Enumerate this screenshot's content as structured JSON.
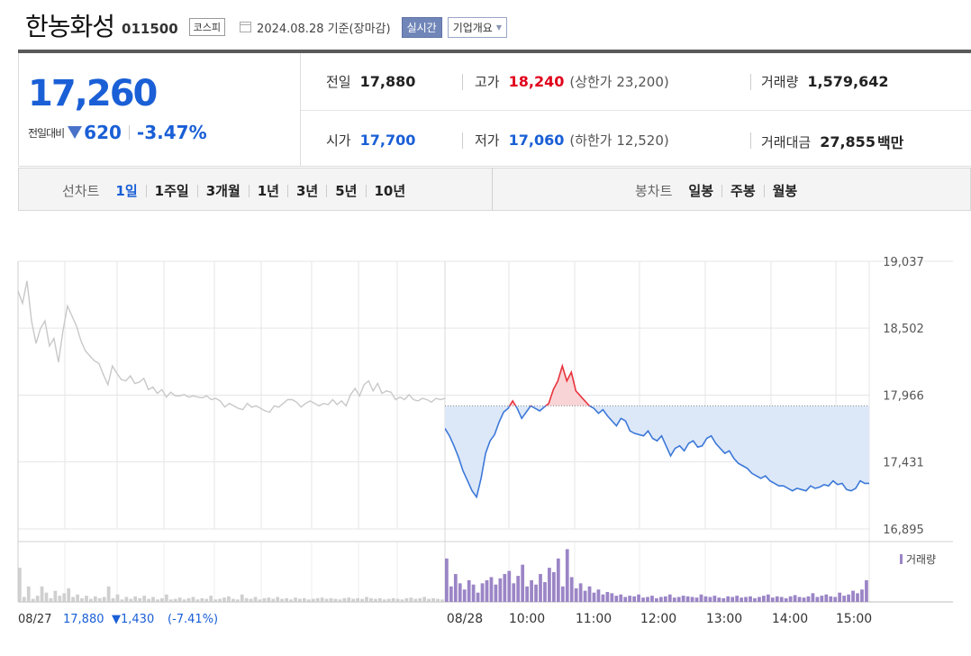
{
  "header": {
    "company_name": "한농화성",
    "code": "011500",
    "market": "코스피",
    "date_text": "2024.08.28  기준(장마감)",
    "realtime_btn": "실시간",
    "company_info_btn": "기업개요"
  },
  "price": {
    "current": "17,260",
    "change_label": "전일대비",
    "change_abs": "620",
    "change_pct": "-3.47%"
  },
  "stats": {
    "prev_close_label": "전일",
    "prev_close": "17,880",
    "high_label": "고가",
    "high": "18,240",
    "upper_limit_text": "(상한가 23,200)",
    "volume_label": "거래량",
    "volume": "1,579,642",
    "open_label": "시가",
    "open": "17,700",
    "low_label": "저가",
    "low": "17,060",
    "lower_limit_text": "(하한가 12,520)",
    "amount_label": "거래대금",
    "amount": "27,855",
    "amount_unit": "백만"
  },
  "tabs": {
    "line_label": "선차트",
    "line_periods": [
      "1일",
      "1주일",
      "3개월",
      "1년",
      "3년",
      "5년",
      "10년"
    ],
    "active_line": "1일",
    "candle_label": "봉차트",
    "candle_periods": [
      "일봉",
      "주봉",
      "월봉"
    ]
  },
  "chart_data": {
    "type": "line",
    "ylim": [
      16895,
      19037
    ],
    "yticks": [
      "19,037",
      "18,502",
      "17,966",
      "17,431",
      "16,895"
    ],
    "ytick_values": [
      19037,
      18502,
      17966,
      17431,
      16895
    ],
    "xticks": [
      "08/28",
      "10:00",
      "11:00",
      "12:00",
      "13:00",
      "14:00",
      "15:00"
    ],
    "volume_legend": "거래량",
    "baseline": 17880,
    "prev_day_footer": {
      "date": "08/27",
      "close": "17,880",
      "change": "▼1,430",
      "pct": "(-7.41%)"
    },
    "colors": {
      "prev": "#c8c8c8",
      "up": "#e8323c",
      "down": "#3c78d8",
      "fill_down": "#dce8f8",
      "fill_up": "#f9d4d6",
      "volume_today": "#9b85c6",
      "volume_prev": "#cfcfcf"
    },
    "series": [
      {
        "name": "08/27",
        "values": [
          18800,
          18700,
          18880,
          18560,
          18380,
          18500,
          18560,
          18360,
          18420,
          18230,
          18480,
          18680,
          18600,
          18520,
          18400,
          18320,
          18280,
          18240,
          18220,
          18130,
          18050,
          18200,
          18140,
          18090,
          18080,
          18120,
          18060,
          18070,
          18100,
          18010,
          18030,
          17980,
          18010,
          17950,
          17990,
          17960,
          17960,
          17970,
          17950,
          17960,
          17950,
          17945,
          17960,
          17930,
          17940,
          17920,
          17870,
          17900,
          17880,
          17860,
          17850,
          17900,
          17870,
          17880,
          17860,
          17840,
          17830,
          17880,
          17870,
          17900,
          17930,
          17930,
          17910,
          17870,
          17900,
          17920,
          17900,
          17880,
          17900,
          17890,
          17930,
          17890,
          17920,
          17880,
          17970,
          18020,
          17960,
          18050,
          18080,
          18000,
          18060,
          17980,
          18000,
          17990,
          17930,
          17950,
          17930,
          17970,
          17930,
          17920,
          17940,
          17930,
          17910,
          17940,
          17930,
          17940
        ]
      },
      {
        "name": "08/28",
        "values": [
          17700,
          17640,
          17560,
          17470,
          17360,
          17280,
          17200,
          17150,
          17300,
          17500,
          17600,
          17650,
          17750,
          17830,
          17860,
          17920,
          17860,
          17780,
          17830,
          17880,
          17860,
          17840,
          17870,
          17900,
          18010,
          18080,
          18200,
          18080,
          18150,
          18000,
          17960,
          17920,
          17880,
          17860,
          17820,
          17850,
          17800,
          17760,
          17720,
          17780,
          17760,
          17680,
          17660,
          17650,
          17640,
          17680,
          17620,
          17600,
          17640,
          17560,
          17480,
          17540,
          17560,
          17520,
          17580,
          17600,
          17550,
          17560,
          17620,
          17640,
          17580,
          17540,
          17500,
          17520,
          17460,
          17420,
          17400,
          17380,
          17340,
          17320,
          17300,
          17320,
          17280,
          17260,
          17240,
          17240,
          17220,
          17200,
          17220,
          17210,
          17200,
          17240,
          17220,
          17230,
          17250,
          17240,
          17280,
          17250,
          17260,
          17210,
          17200,
          17220,
          17280,
          17260,
          17260
        ]
      }
    ],
    "volume_prev": [
      55,
      8,
      25,
      5,
      10,
      25,
      15,
      6,
      18,
      10,
      14,
      22,
      8,
      12,
      6,
      10,
      5,
      9,
      6,
      8,
      25,
      6,
      12,
      4,
      8,
      5,
      9,
      6,
      10,
      5,
      8,
      4,
      6,
      12,
      4,
      5,
      7,
      4,
      6,
      8,
      4,
      6,
      5,
      10,
      4,
      5,
      7,
      9,
      5,
      4,
      12,
      6,
      5,
      8,
      4,
      6,
      7,
      5,
      8,
      5,
      6,
      4,
      7,
      5,
      6,
      4,
      5,
      6,
      7,
      5,
      6,
      5,
      4,
      6,
      7,
      5,
      6,
      5,
      8,
      6,
      5,
      6,
      4,
      5,
      6,
      5,
      4,
      6,
      7,
      5,
      6,
      8,
      5,
      6,
      5,
      4
    ],
    "volume_today": [
      70,
      25,
      45,
      30,
      20,
      35,
      28,
      15,
      30,
      35,
      40,
      28,
      38,
      45,
      50,
      30,
      42,
      60,
      25,
      35,
      28,
      45,
      32,
      55,
      48,
      70,
      25,
      85,
      40,
      22,
      30,
      18,
      25,
      15,
      20,
      12,
      16,
      14,
      10,
      12,
      8,
      10,
      9,
      12,
      7,
      8,
      10,
      6,
      8,
      9,
      12,
      7,
      8,
      10,
      9,
      8,
      7,
      12,
      9,
      8,
      10,
      7,
      6,
      9,
      8,
      10,
      7,
      8,
      9,
      6,
      8,
      10,
      12,
      7,
      9,
      8,
      6,
      9,
      11,
      8,
      7,
      9,
      14,
      8,
      10,
      12,
      9,
      8,
      15,
      10,
      12,
      18,
      14,
      20,
      35
    ]
  }
}
